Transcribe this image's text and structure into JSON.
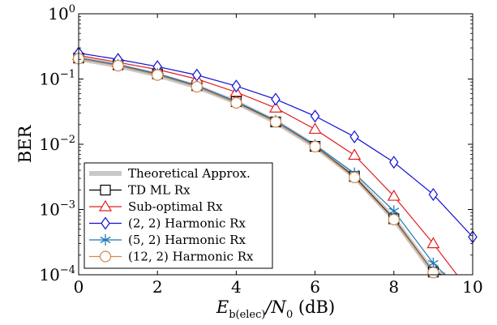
{
  "chart_data": {
    "type": "line",
    "title": "",
    "xlabel_main": "E",
    "xlabel_sub": "b(elec)",
    "xlabel_rest": "/N",
    "xlabel_sub2": "0",
    "xlabel_unit": " (dB)",
    "ylabel": "BER",
    "xlim": [
      0,
      10
    ],
    "ylim": [
      0.0001,
      1
    ],
    "yscale": "log",
    "x_ticks": [
      0,
      2,
      4,
      6,
      8,
      10
    ],
    "y_ticks": [
      {
        "base": "10",
        "exp": "0",
        "value": 1
      },
      {
        "base": "10",
        "exp": "−1",
        "value": 0.1
      },
      {
        "base": "10",
        "exp": "−2",
        "value": 0.01
      },
      {
        "base": "10",
        "exp": "−3",
        "value": 0.001
      },
      {
        "base": "10",
        "exp": "−4",
        "value": 0.0001
      }
    ],
    "legend_position": "bottom-left",
    "series": [
      {
        "name": "Theoretical Approx.",
        "color": "#c8c8c8",
        "marker": "none",
        "x": [
          0,
          1,
          2,
          3,
          4,
          5,
          6,
          7,
          8,
          9,
          9.3
        ],
        "y": [
          0.205,
          0.16,
          0.115,
          0.076,
          0.044,
          0.022,
          0.0093,
          0.0032,
          0.00072,
          0.000108,
          0.0001
        ]
      },
      {
        "name": "TD ML Rx",
        "color": "#000000",
        "marker": "square",
        "x": [
          0,
          1,
          2,
          3,
          4,
          5,
          6,
          7,
          8,
          9,
          9.2
        ],
        "y": [
          0.21,
          0.165,
          0.12,
          0.079,
          0.045,
          0.022,
          0.0093,
          0.0032,
          0.00072,
          0.00011,
          0.0001
        ]
      },
      {
        "name": "Sub-optimal Rx",
        "color": "#e02020",
        "marker": "triangle",
        "x": [
          0,
          1,
          2,
          3,
          4,
          5,
          6,
          7,
          8,
          9,
          9.6
        ],
        "y": [
          0.23,
          0.18,
          0.14,
          0.1,
          0.063,
          0.036,
          0.017,
          0.0068,
          0.0016,
          0.0003,
          0.0001
        ]
      },
      {
        "name": "(2, 2) Harmonic Rx",
        "color": "#1010d0",
        "marker": "diamond",
        "x": [
          0,
          1,
          2,
          3,
          4,
          5,
          6,
          7,
          8,
          9,
          10
        ],
        "y": [
          0.25,
          0.2,
          0.155,
          0.115,
          0.078,
          0.049,
          0.027,
          0.013,
          0.0053,
          0.0017,
          0.00038
        ]
      },
      {
        "name": "(5, 2) Harmonic Rx",
        "color": "#1f77b4",
        "marker": "star",
        "x": [
          0,
          1,
          2,
          3,
          4,
          5,
          6,
          7,
          8,
          9,
          9.3
        ],
        "y": [
          0.21,
          0.165,
          0.12,
          0.079,
          0.045,
          0.023,
          0.0097,
          0.0036,
          0.00095,
          0.00015,
          0.0001
        ]
      },
      {
        "name": "(12, 2) Harmonic Rx",
        "color": "#d08a50",
        "marker": "circle",
        "x": [
          0,
          1,
          2,
          3,
          4,
          5,
          6,
          7,
          8,
          9
        ],
        "y": [
          0.205,
          0.16,
          0.115,
          0.076,
          0.043,
          0.022,
          0.0092,
          0.0031,
          0.0007,
          0.000108
        ]
      }
    ]
  }
}
